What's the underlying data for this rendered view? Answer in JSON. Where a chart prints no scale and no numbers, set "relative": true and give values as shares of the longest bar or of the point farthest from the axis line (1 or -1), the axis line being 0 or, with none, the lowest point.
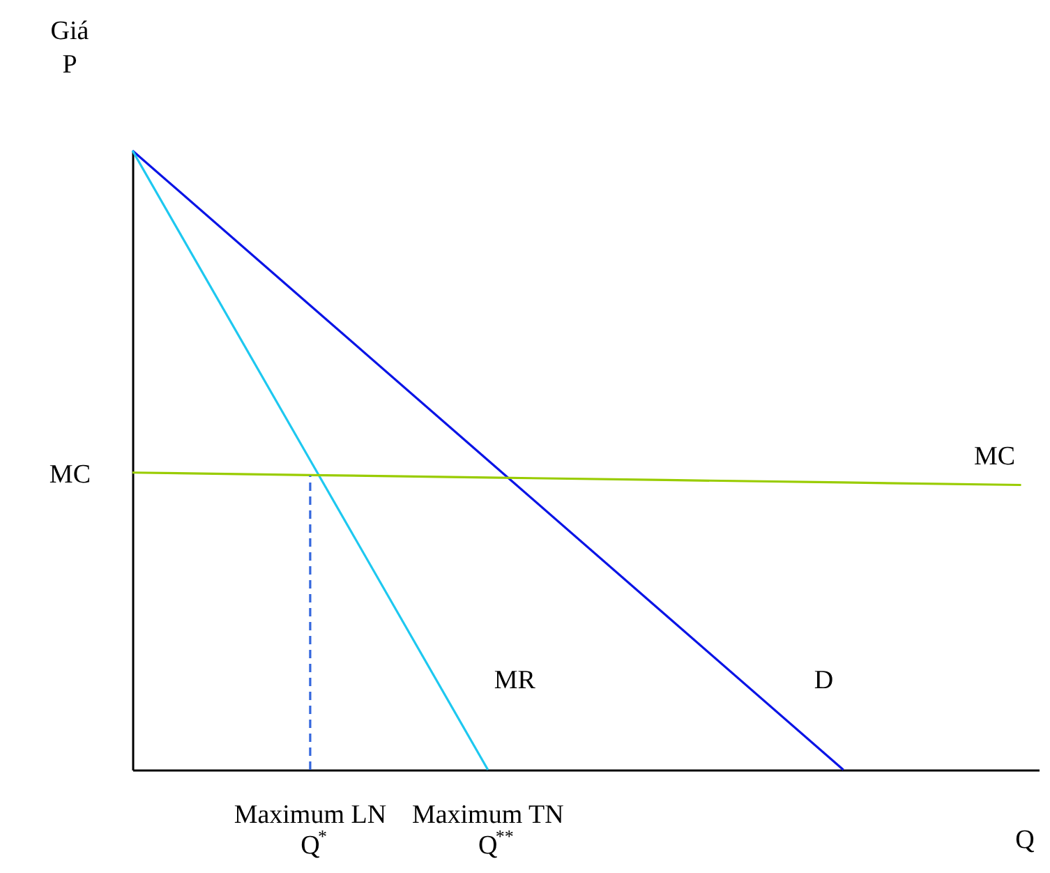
{
  "chart_data": {
    "type": "line",
    "relative": true,
    "ylabel": "Giá\nP",
    "xlabel": "Q",
    "categories": [
      null,
      "Maximum LN\nQ$^{*}$",
      "Maximum TN\nQ$^{**}$",
      null,
      null,
      null
    ],
    "annotations": [
      "MC"
    ],
    "series": [
      {
        "name": "D",
        "color": "#0a14e6",
        "values": [
          1,
          0.75,
          0.5,
          0.25,
          0,
          null
        ]
      },
      {
        "name": "MR",
        "color": "#1ec8f0",
        "values": [
          1,
          0.5,
          0,
          null,
          null,
          null
        ]
      },
      {
        "name": "MC",
        "color": "#99cc00",
        "values": [
          0.48,
          0.476,
          0.472,
          0.468,
          0.464,
          0.46
        ]
      },
      {
        "color": "#3366dd",
        "line_style": "dashed",
        "x": [
          "Maximum LN\nQ$^{*}$",
          "Maximum LN\nQ$^{*}$"
        ],
        "values": [
          0,
          0.475
        ]
      }
    ]
  }
}
